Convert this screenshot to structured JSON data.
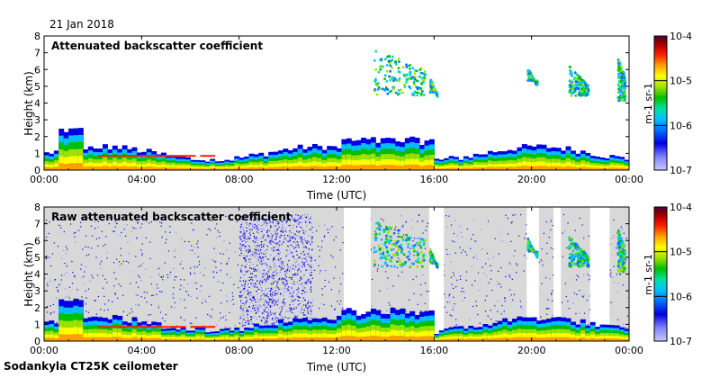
{
  "header": {
    "date": "21 Jan 2018"
  },
  "footer": {
    "instrument": "Sodankyla CT25K ceilometer"
  },
  "colors": {
    "plot_background": "#ffffff",
    "raw_background": "#d8d8d8",
    "palette": [
      "#c8c8ff",
      "#8080ff",
      "#0000e0",
      "#0070ff",
      "#00c0ff",
      "#00e0a0",
      "#00c000",
      "#a0e000",
      "#ffff00",
      "#ffa000",
      "#ff2000",
      "#c00000",
      "#700000",
      "#500060"
    ]
  },
  "chart_data": [
    {
      "type": "heatmap",
      "title": "Attenuated backscatter coefficient",
      "xlabel": "Time (UTC)",
      "ylabel": "Height (km)",
      "xlim": [
        "00:00",
        "24:00"
      ],
      "xticks": [
        "00:00",
        "04:00",
        "08:00",
        "12:00",
        "16:00",
        "20:00",
        "00:00"
      ],
      "ylim": [
        0,
        8
      ],
      "yticks": [
        "0",
        "1",
        "2",
        "3",
        "4",
        "5",
        "6",
        "7",
        "8"
      ],
      "colorbar": {
        "label": "m-1 sr-1",
        "ticks": [
          "10-7",
          "10-6",
          "10-5",
          "10-4"
        ],
        "range": [
          1e-07,
          0.0001
        ],
        "scale": "log"
      },
      "features": [
        {
          "name": "boundary layer",
          "time_range_h": [
            0,
            24
          ],
          "height_km": [
            0,
            1.5
          ]
        },
        {
          "name": "cloud layer",
          "time_range_h": [
            13.5,
            15.6
          ],
          "height_km": [
            4.5,
            7.3
          ]
        },
        {
          "name": "cloud layer",
          "time_range_h": [
            15.8,
            16.1
          ],
          "height_km": [
            4.7,
            5.6
          ]
        },
        {
          "name": "cloud layer",
          "time_range_h": [
            19.8,
            20.2
          ],
          "height_km": [
            5.4,
            6.2
          ]
        },
        {
          "name": "cloud layer",
          "time_range_h": [
            21.5,
            22.3
          ],
          "height_km": [
            4.5,
            6.3
          ]
        },
        {
          "name": "cloud layer",
          "time_range_h": [
            23.5,
            23.8
          ],
          "height_km": [
            4.2,
            6.8
          ]
        }
      ]
    },
    {
      "type": "heatmap",
      "title": "Raw attenuated backscatter coefficient",
      "xlabel": "Time (UTC)",
      "ylabel": "Height (km)",
      "xlim": [
        "00:00",
        "24:00"
      ],
      "xticks": [
        "00:00",
        "04:00",
        "08:00",
        "12:00",
        "16:00",
        "20:00",
        "00:00"
      ],
      "ylim": [
        0,
        8
      ],
      "yticks": [
        "0",
        "1",
        "2",
        "3",
        "4",
        "5",
        "6",
        "7",
        "8"
      ],
      "colorbar": {
        "label": "m-1 sr-1",
        "ticks": [
          "10-7",
          "10-6",
          "10-5",
          "10-4"
        ],
        "range": [
          1e-07,
          0.0001
        ],
        "scale": "log"
      }
    }
  ]
}
